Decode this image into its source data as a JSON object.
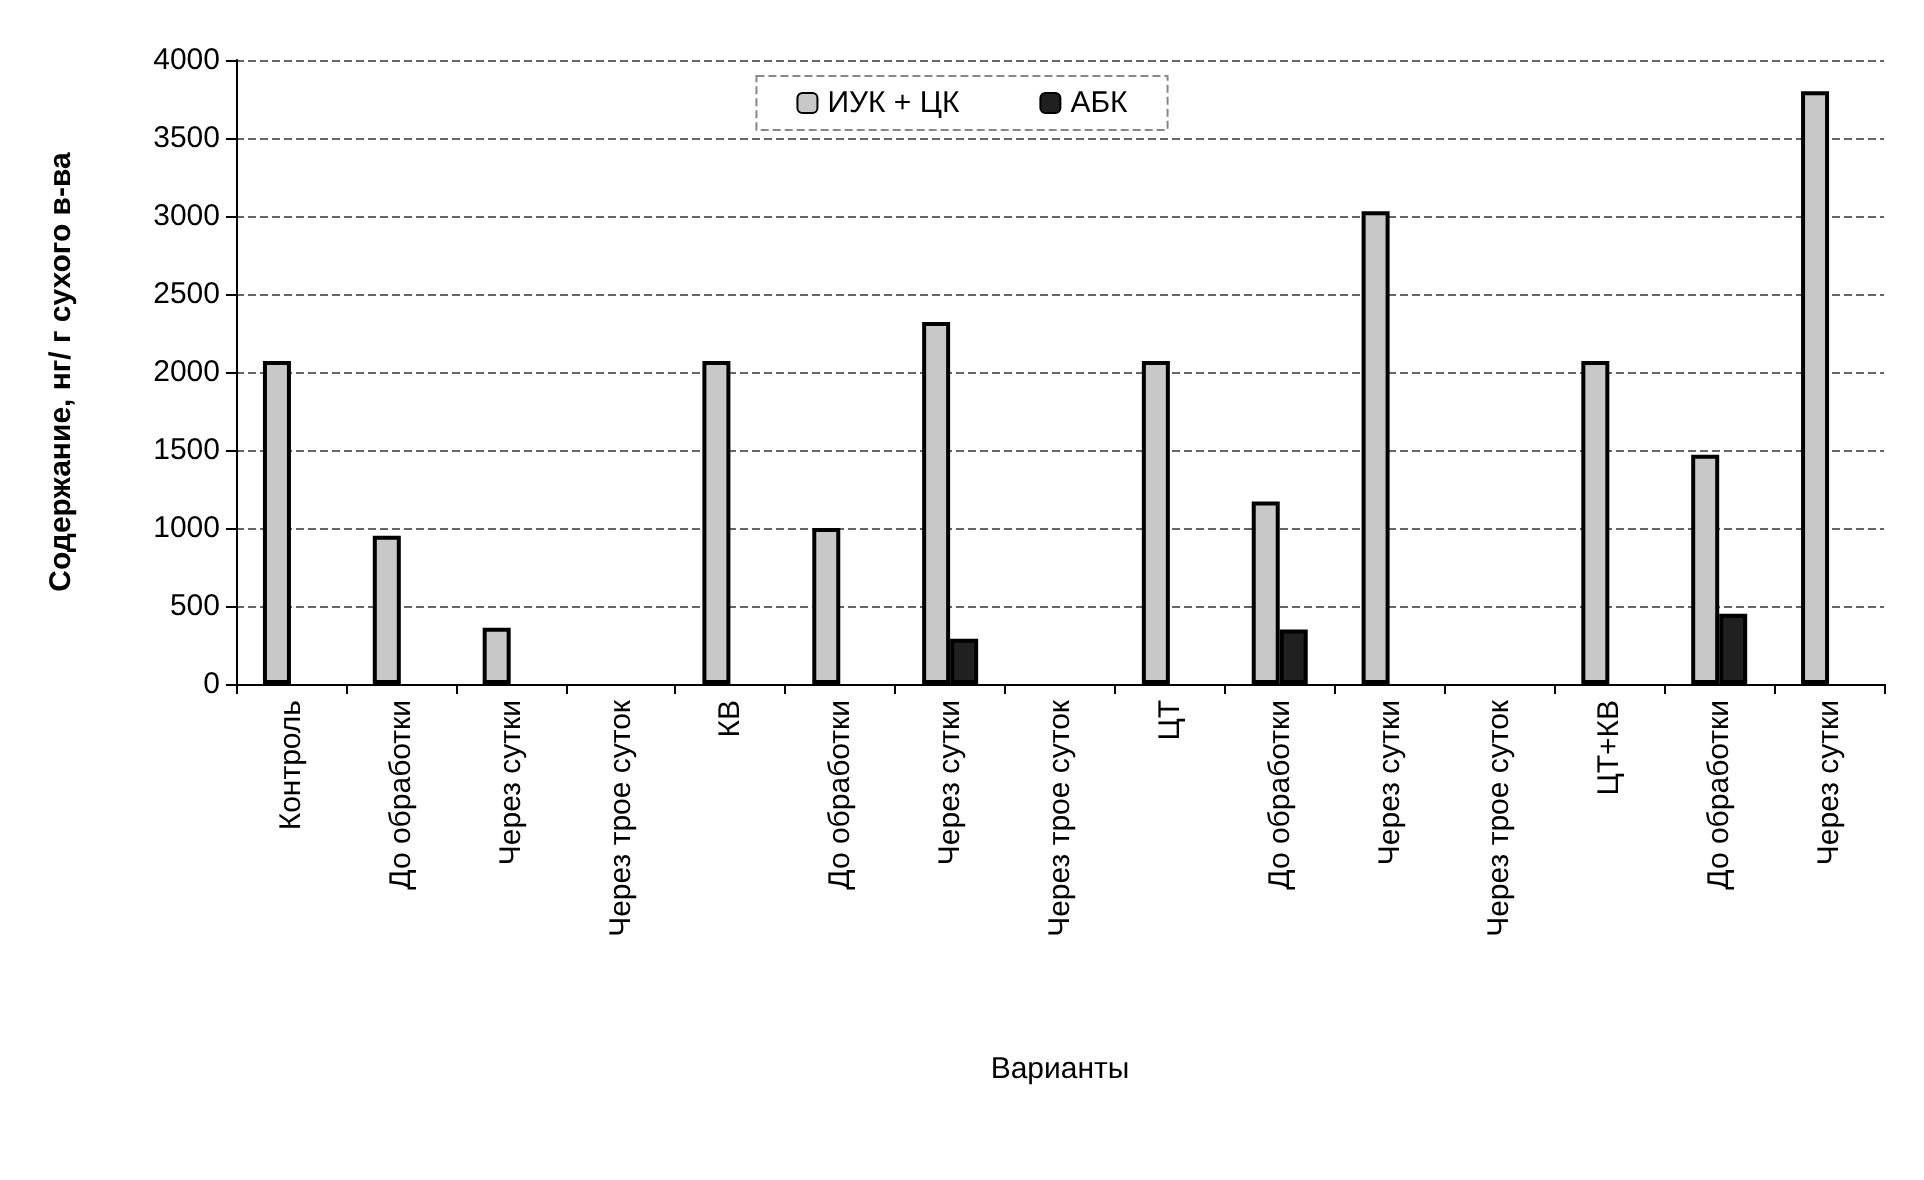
{
  "chart_data": {
    "type": "bar",
    "xlabel": "Варианты",
    "ylabel": "Содержание, нг/ г сухого в-ва",
    "categories": [
      "Контроль",
      "До обработки",
      "Через сутки",
      "Через трое суток",
      "КВ",
      "До обработки",
      "Через сутки",
      "Через трое суток",
      "ЦТ",
      "До обработки",
      "Через сутки",
      "Через трое суток",
      "ЦТ+КВ",
      "До обработки",
      "Через сутки"
    ],
    "series": [
      {
        "name": "ИУК + ЦК",
        "color": "#c8c8c8",
        "values": [
          2070,
          950,
          360,
          null,
          2070,
          1000,
          2320,
          null,
          2070,
          1170,
          3030,
          null,
          2070,
          1470,
          3800
        ]
      },
      {
        "name": "АБК",
        "color": "#202020",
        "values": [
          null,
          null,
          null,
          null,
          null,
          null,
          290,
          null,
          null,
          350,
          null,
          null,
          null,
          450,
          null
        ]
      }
    ],
    "ylim": [
      0,
      4000
    ],
    "yticks": [
      0,
      500,
      1000,
      1500,
      2000,
      2500,
      3000,
      3500,
      4000
    ],
    "grid": "y",
    "legend": "top"
  }
}
